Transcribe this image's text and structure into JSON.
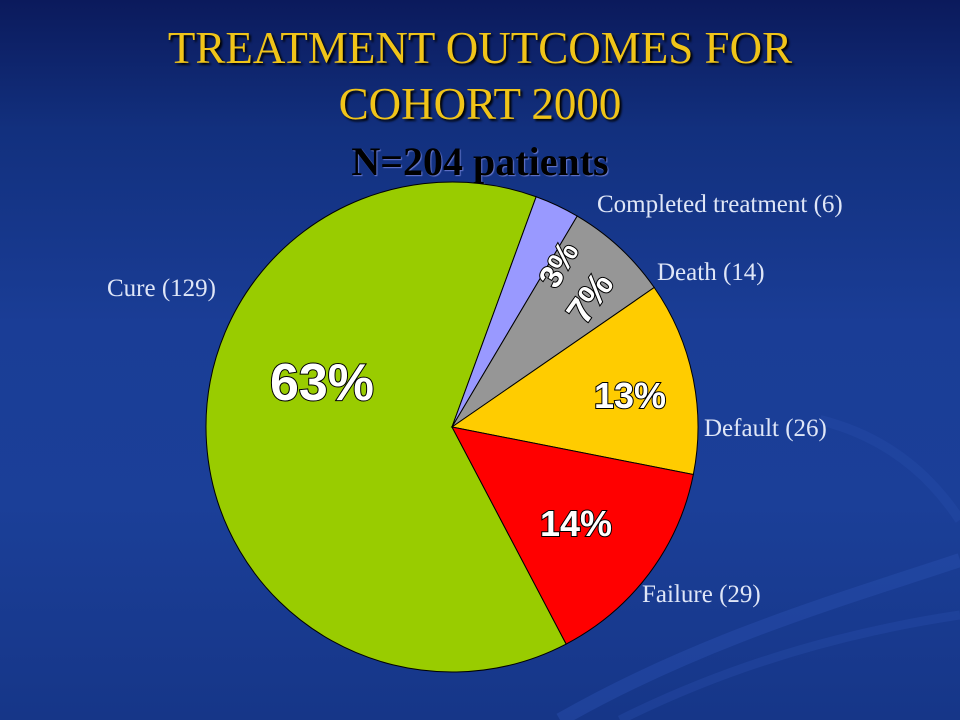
{
  "slide": {
    "title_line1": "TREATMENT OUTCOMES FOR",
    "title_line2": "COHORT 2000",
    "subtitle": "N=204 patients"
  },
  "chart_data": {
    "type": "pie",
    "title": "TREATMENT OUTCOMES FOR COHORT 2000",
    "subtitle": "N=204 patients",
    "total": 204,
    "slices": [
      {
        "category": "Cure (129)",
        "count": 129,
        "percent": 63,
        "percent_label": "63%",
        "color": "#99cc00"
      },
      {
        "category": "Completed treatment (6)",
        "count": 6,
        "percent": 3,
        "percent_label": "3%",
        "color": "#9999ff"
      },
      {
        "category": "Death (14)",
        "count": 14,
        "percent": 7,
        "percent_label": "7%",
        "color": "#969696"
      },
      {
        "category": "Default (26)",
        "count": 26,
        "percent": 13,
        "percent_label": "13%",
        "color": "#ffcc00"
      },
      {
        "category": "Failure (29)",
        "count": 29,
        "percent": 14,
        "percent_label": "14%",
        "color": "#ff0000"
      }
    ],
    "legend": "none"
  }
}
